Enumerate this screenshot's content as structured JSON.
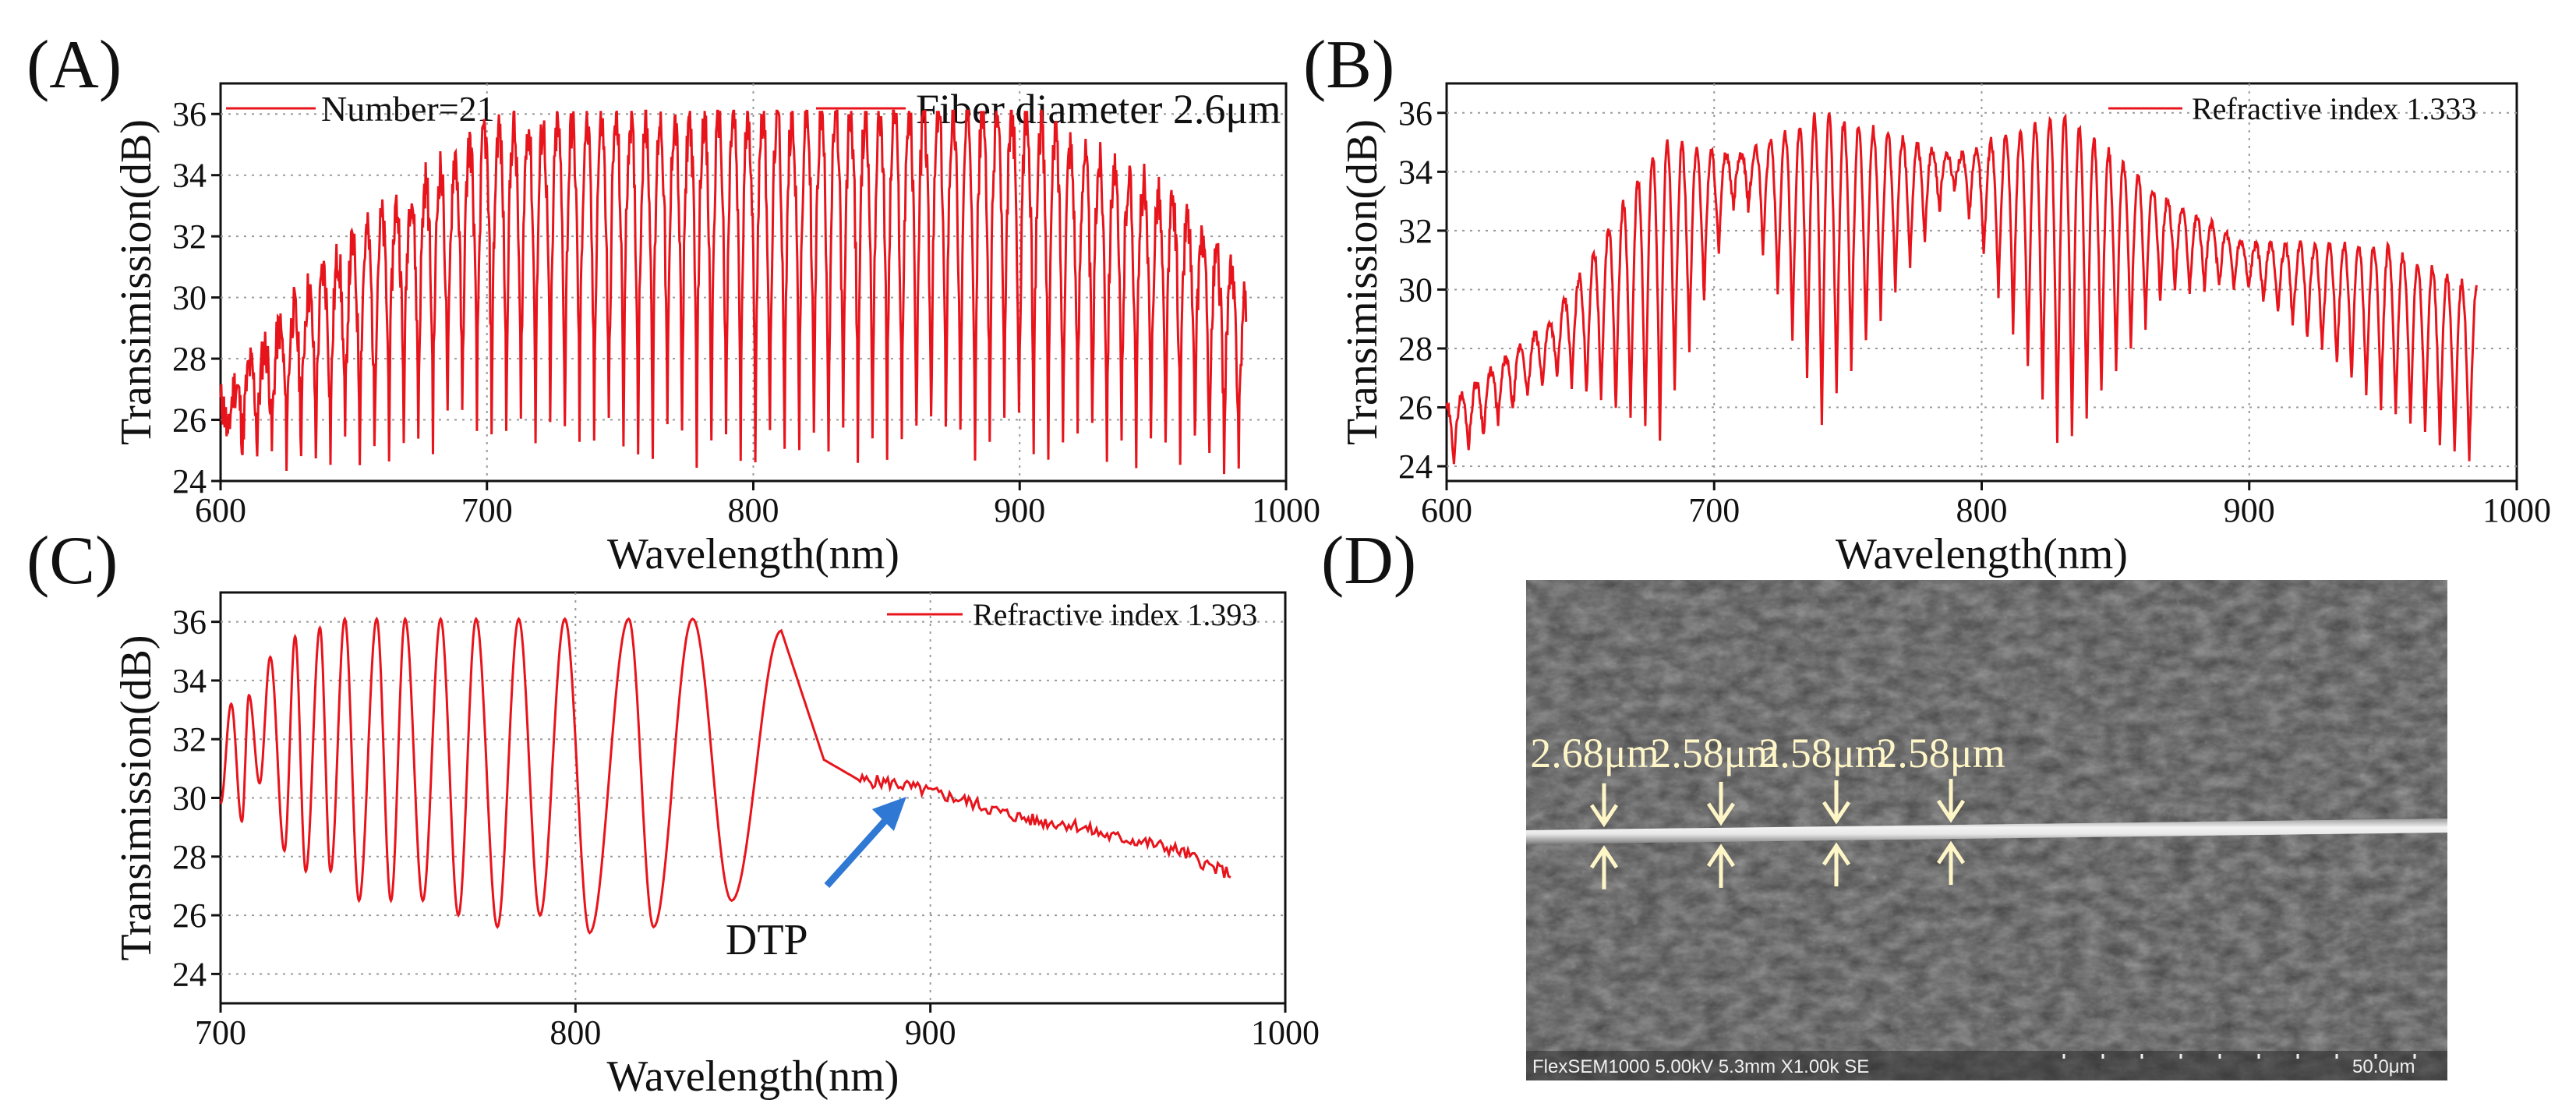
{
  "panels": {
    "a": {
      "letter": "(A)"
    },
    "b": {
      "letter": "(B)"
    },
    "c": {
      "letter": "(C)"
    },
    "d": {
      "letter": "(D)"
    }
  },
  "colors": {
    "trace": "#e8141c",
    "arrow": "#2f78d4",
    "grid": "#9a9a9a",
    "sem_label": "#fff6c8"
  },
  "chart_data": [
    {
      "id": "A",
      "type": "line",
      "xlabel": "Wavelength(nm)",
      "ylabel": "Transimission(dB)",
      "xlim": [
        600,
        1000
      ],
      "ylim": [
        24,
        37
      ],
      "xticks": [
        600,
        700,
        800,
        900,
        1000
      ],
      "yticks": [
        24,
        26,
        28,
        30,
        32,
        34,
        36
      ],
      "legend": [
        "Number=21",
        "Fiber diameter 2.6μm"
      ],
      "series": [
        {
          "name": "Fiber diameter 2.6μm",
          "x_start": 600,
          "x_end": 985,
          "period_nm": 5.5,
          "envelope_peak_x": [
            600,
            640,
            700,
            800,
            900,
            960,
            985
          ],
          "envelope_peak_y": [
            26.5,
            31,
            35.5,
            36,
            36,
            33,
            30
          ],
          "envelope_dip_y": [
            25,
            25,
            26,
            25,
            25.5,
            25,
            25
          ],
          "saturation": 36.1
        }
      ]
    },
    {
      "id": "B",
      "type": "line",
      "xlabel": "Wavelength(nm)",
      "ylabel": "Transimission(dB)",
      "xlim": [
        600,
        1000
      ],
      "ylim": [
        23.5,
        37
      ],
      "xticks": [
        600,
        700,
        800,
        900,
        1000
      ],
      "yticks": [
        24,
        26,
        28,
        30,
        32,
        34,
        36
      ],
      "legend": [
        "Refractive index 1.333"
      ],
      "series": [
        {
          "name": "Refractive index 1.333",
          "x_start": 600,
          "x_end": 985,
          "period_nm": 5.5,
          "envelope_peak_x": [
            600,
            640,
            680,
            710,
            740,
            790,
            830,
            870,
            900,
            950,
            985
          ],
          "envelope_peak_y": [
            26,
            29,
            35,
            34.5,
            36,
            34.5,
            36,
            33,
            31.5,
            31.5,
            30
          ],
          "envelope_dip_y": [
            24,
            27,
            25,
            33.5,
            25.5,
            33.5,
            24.5,
            30,
            30,
            26,
            24
          ]
        }
      ]
    },
    {
      "id": "C",
      "type": "line",
      "xlabel": "Wavelength(nm)",
      "ylabel": "Transimission(dB)",
      "xlim": [
        700,
        1000
      ],
      "ylim": [
        23,
        37
      ],
      "xticks": [
        700,
        800,
        900,
        1000
      ],
      "yticks": [
        24,
        26,
        28,
        30,
        32,
        34,
        36
      ],
      "legend": [
        "Refractive index 1.393"
      ],
      "annotation": {
        "text": "DTP",
        "x": 895,
        "y": 30.2
      },
      "series": [
        {
          "name": "Refractive index 1.393",
          "peaks_x": [
            703,
            708,
            714,
            721,
            728,
            735,
            744,
            752,
            762,
            772,
            784,
            797,
            815,
            833,
            858
          ],
          "peaks_y": [
            33.2,
            33.5,
            34.8,
            35.5,
            35.8,
            36.1,
            36.1,
            36.1,
            36.1,
            36.1,
            36.1,
            36.1,
            36.1,
            36.1,
            35.7
          ],
          "dips_x": [
            706,
            711,
            718,
            724,
            731,
            739,
            748,
            757,
            767,
            778,
            790,
            804,
            822,
            844
          ],
          "dips_y": [
            29.2,
            30.5,
            28.2,
            27.5,
            27.5,
            26.5,
            26.5,
            26.5,
            26,
            25.6,
            26,
            25.4,
            25.6,
            26.5
          ],
          "tail_x": [
            870,
            880,
            890,
            900,
            910,
            920,
            930,
            940,
            950,
            960,
            970,
            980,
            985
          ],
          "tail_y": [
            31.3,
            30.6,
            30.5,
            30.2,
            29.9,
            29.5,
            29.2,
            29.1,
            28.7,
            28.5,
            28.2,
            27.6,
            27.4
          ]
        }
      ]
    }
  ],
  "sem": {
    "labels": [
      "2.68μm",
      "2.58μm",
      "2.58μm",
      "2.58μm"
    ],
    "footer": "FlexSEM1000 5.00kV 5.3mm X1.00k SE",
    "scale_label": "50.0μm"
  }
}
